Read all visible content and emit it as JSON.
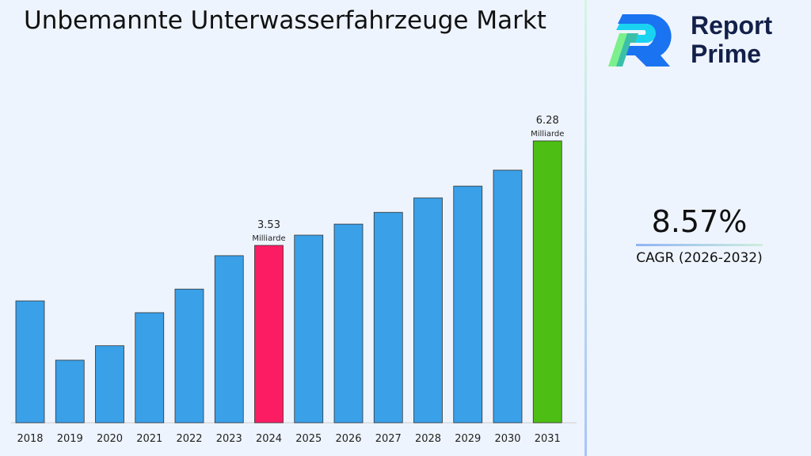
{
  "title": "Unbemannte Unterwasserfahrzeuge Markt",
  "brand": {
    "line1": "Report",
    "line2": "Prime",
    "logo_icon": "report-prime-logo"
  },
  "cagr": {
    "value": "8.57%",
    "label": "CAGR (2026-2032)"
  },
  "chart_data": {
    "type": "bar",
    "title": "Unbemannte Unterwasserfahrzeuge Markt",
    "categories": [
      "2018",
      "2019",
      "2020",
      "2021",
      "2022",
      "2023",
      "2024",
      "2025",
      "2026",
      "2027",
      "2028",
      "2029",
      "2030",
      "2031"
    ],
    "values": [
      2.07,
      0.51,
      0.89,
      1.76,
      2.38,
      3.26,
      3.53,
      3.8,
      4.09,
      4.4,
      4.78,
      5.09,
      5.51,
      6.28
    ],
    "unit": "Milliarde",
    "data_labels": [
      {
        "category": "2024",
        "value": "3.53",
        "unit": "Milliarde"
      },
      {
        "category": "2031",
        "value": "6.28",
        "unit": "Milliarde"
      }
    ],
    "colors": {
      "default": "#3aa0e8",
      "highlight_2024": "#fc1c64",
      "highlight_2031": "#4cbe14"
    },
    "grid": false,
    "legend": "none"
  }
}
